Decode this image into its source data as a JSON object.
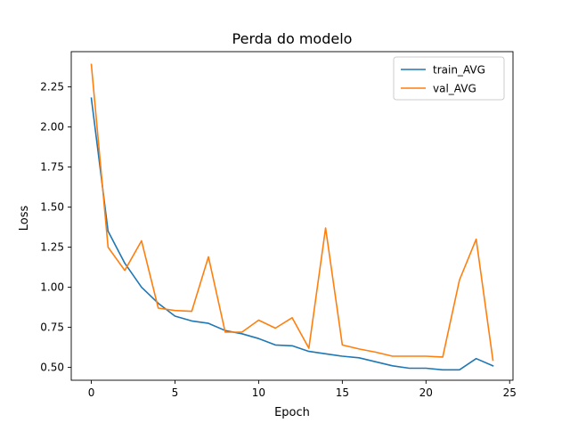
{
  "chart_data": {
    "type": "line",
    "title": "Perda do modelo",
    "xlabel": "Epoch",
    "ylabel": "Loss",
    "xlim": [
      -1.2,
      25.2
    ],
    "ylim": [
      0.42,
      2.47
    ],
    "xticks": [
      0,
      5,
      10,
      15,
      20,
      25
    ],
    "yticks": [
      0.5,
      0.75,
      1.0,
      1.25,
      1.5,
      1.75,
      2.0,
      2.25
    ],
    "ytick_labels": [
      "0.50",
      "0.75",
      "1.00",
      "1.25",
      "1.50",
      "1.75",
      "2.00",
      "2.25"
    ],
    "legend_position": "top-right",
    "grid": false,
    "x": [
      0,
      1,
      2,
      3,
      4,
      5,
      6,
      7,
      8,
      9,
      10,
      11,
      12,
      13,
      14,
      15,
      16,
      17,
      18,
      19,
      20,
      21,
      22,
      23,
      24
    ],
    "series": [
      {
        "name": "train_AVG",
        "color": "#1f77b4",
        "values": [
          2.18,
          1.35,
          1.15,
          1.0,
          0.9,
          0.82,
          0.79,
          0.775,
          0.73,
          0.71,
          0.68,
          0.64,
          0.635,
          0.6,
          0.585,
          0.57,
          0.56,
          0.535,
          0.51,
          0.495,
          0.495,
          0.485,
          0.485,
          0.555,
          0.51
        ]
      },
      {
        "name": "val_AVG",
        "color": "#ff7f0e",
        "values": [
          2.39,
          1.25,
          1.105,
          1.29,
          0.87,
          0.855,
          0.85,
          1.19,
          0.72,
          0.72,
          0.795,
          0.745,
          0.81,
          0.62,
          1.37,
          0.64,
          0.615,
          0.595,
          0.57,
          0.57,
          0.57,
          0.565,
          1.045,
          1.3,
          0.545
        ]
      }
    ]
  }
}
